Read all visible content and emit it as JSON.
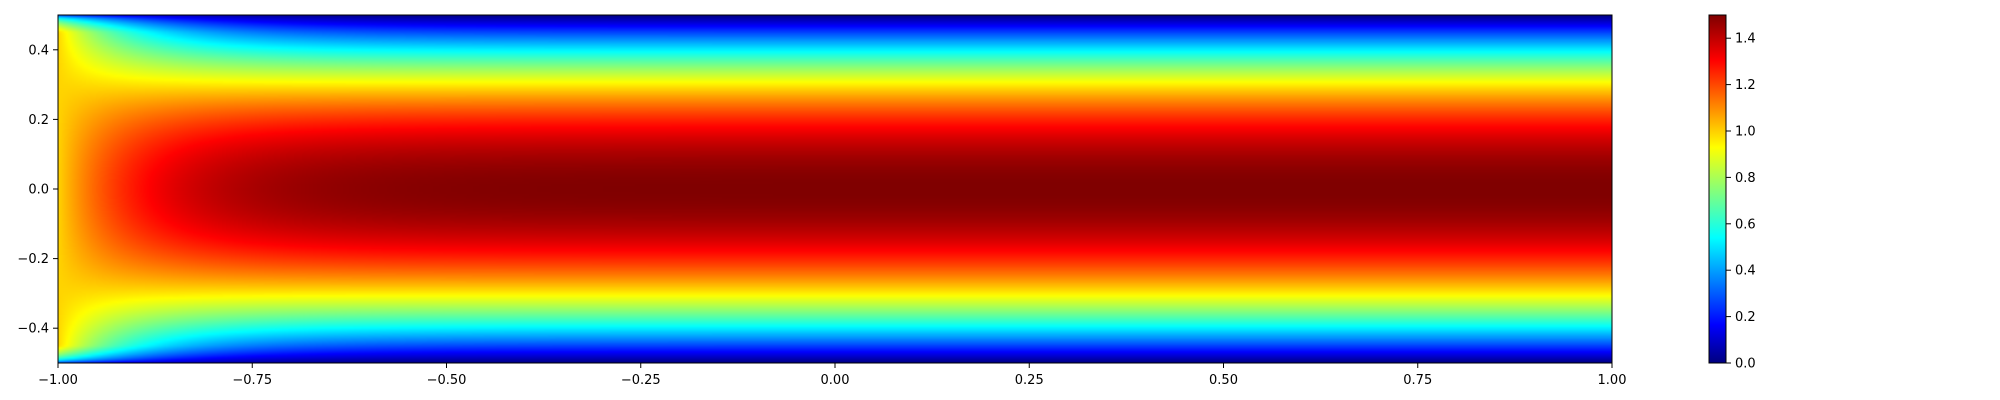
{
  "chart_data": {
    "type": "heatmap",
    "title": "",
    "xlabel": "",
    "ylabel": "",
    "xlim": [
      -1.0,
      1.0
    ],
    "ylim": [
      -0.5,
      0.5
    ],
    "x_ticks": [
      {
        "value": -1.0,
        "label": "−1.00"
      },
      {
        "value": -0.75,
        "label": "−0.75"
      },
      {
        "value": -0.5,
        "label": "−0.50"
      },
      {
        "value": -0.25,
        "label": "−0.25"
      },
      {
        "value": 0.0,
        "label": "0.00"
      },
      {
        "value": 0.25,
        "label": "0.25"
      },
      {
        "value": 0.5,
        "label": "0.50"
      },
      {
        "value": 0.75,
        "label": "0.75"
      },
      {
        "value": 1.0,
        "label": "1.00"
      }
    ],
    "y_ticks": [
      {
        "value": 0.4,
        "label": "0.4"
      },
      {
        "value": 0.2,
        "label": "0.2"
      },
      {
        "value": 0.0,
        "label": "0.0"
      },
      {
        "value": -0.2,
        "label": "−0.2"
      },
      {
        "value": -0.4,
        "label": "−0.4"
      }
    ],
    "colorbar": {
      "colormap": "jet",
      "range": [
        0.0,
        1.5
      ],
      "ticks": [
        {
          "value": 0.0,
          "label": "0.0"
        },
        {
          "value": 0.2,
          "label": "0.2"
        },
        {
          "value": 0.4,
          "label": "0.4"
        },
        {
          "value": 0.6,
          "label": "0.6"
        },
        {
          "value": 0.8,
          "label": "0.8"
        },
        {
          "value": 1.0,
          "label": "1.0"
        },
        {
          "value": 1.2,
          "label": "1.2"
        },
        {
          "value": 1.4,
          "label": "1.4"
        }
      ]
    },
    "field": {
      "description_values": {
        "inlet_value": 1.0,
        "centerline_max": 1.5,
        "wall_value": 0.0
      }
    }
  }
}
